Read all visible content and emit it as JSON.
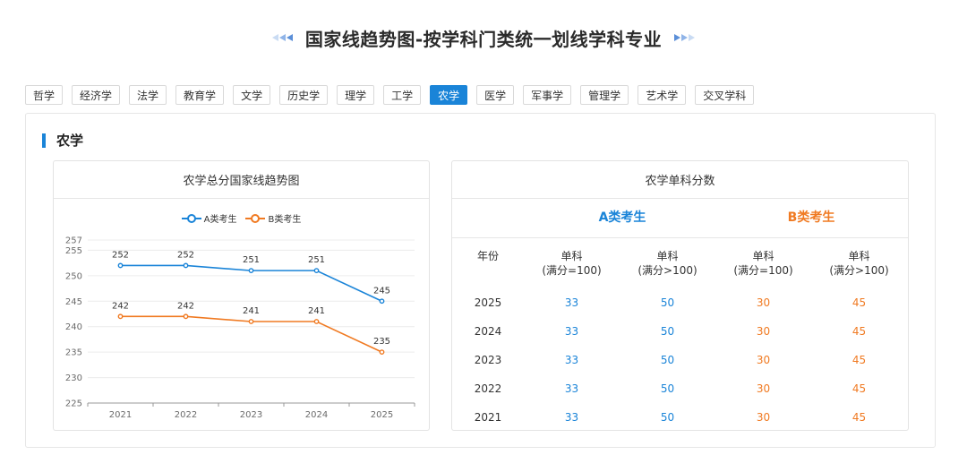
{
  "title": "国家线趋势图-按学科门类统一划线学科专业",
  "tabs": [
    {
      "label": "哲学",
      "active": false
    },
    {
      "label": "经济学",
      "active": false
    },
    {
      "label": "法学",
      "active": false
    },
    {
      "label": "教育学",
      "active": false
    },
    {
      "label": "文学",
      "active": false
    },
    {
      "label": "历史学",
      "active": false
    },
    {
      "label": "理学",
      "active": false
    },
    {
      "label": "工学",
      "active": false
    },
    {
      "label": "农学",
      "active": true
    },
    {
      "label": "医学",
      "active": false
    },
    {
      "label": "军事学",
      "active": false
    },
    {
      "label": "管理学",
      "active": false
    },
    {
      "label": "艺术学",
      "active": false
    },
    {
      "label": "交叉学科",
      "active": false
    }
  ],
  "section": {
    "title": "农学"
  },
  "colors": {
    "series_a": "#1a84d8",
    "series_b": "#f07a22",
    "accent": "#1a84d8"
  },
  "chart_data": {
    "type": "line",
    "title": "农学总分国家线趋势图",
    "x": [
      "2021",
      "2022",
      "2023",
      "2024",
      "2025"
    ],
    "series": [
      {
        "name": "A类考生",
        "values": [
          252,
          252,
          251,
          251,
          245
        ]
      },
      {
        "name": "B类考生",
        "values": [
          242,
          242,
          241,
          241,
          235
        ]
      }
    ],
    "yticks": [
      225,
      230,
      235,
      240,
      245,
      250,
      255,
      257
    ],
    "ylim": [
      225,
      257
    ],
    "legend": "top-center",
    "grid": true
  },
  "table": {
    "title": "农学单科分数",
    "group_a": "A类考生",
    "group_b": "B类考生",
    "year_header": "年份",
    "col_headers": [
      {
        "line1": "单科",
        "line2": "(满分=100)"
      },
      {
        "line1": "单科",
        "line2": "(满分>100)"
      },
      {
        "line1": "单科",
        "line2": "(满分=100)"
      },
      {
        "line1": "单科",
        "line2": "(满分>100)"
      }
    ],
    "rows": [
      {
        "year": "2025",
        "a1": "33",
        "a2": "50",
        "b1": "30",
        "b2": "45"
      },
      {
        "year": "2024",
        "a1": "33",
        "a2": "50",
        "b1": "30",
        "b2": "45"
      },
      {
        "year": "2023",
        "a1": "33",
        "a2": "50",
        "b1": "30",
        "b2": "45"
      },
      {
        "year": "2022",
        "a1": "33",
        "a2": "50",
        "b1": "30",
        "b2": "45"
      },
      {
        "year": "2021",
        "a1": "33",
        "a2": "50",
        "b1": "30",
        "b2": "45"
      }
    ]
  }
}
